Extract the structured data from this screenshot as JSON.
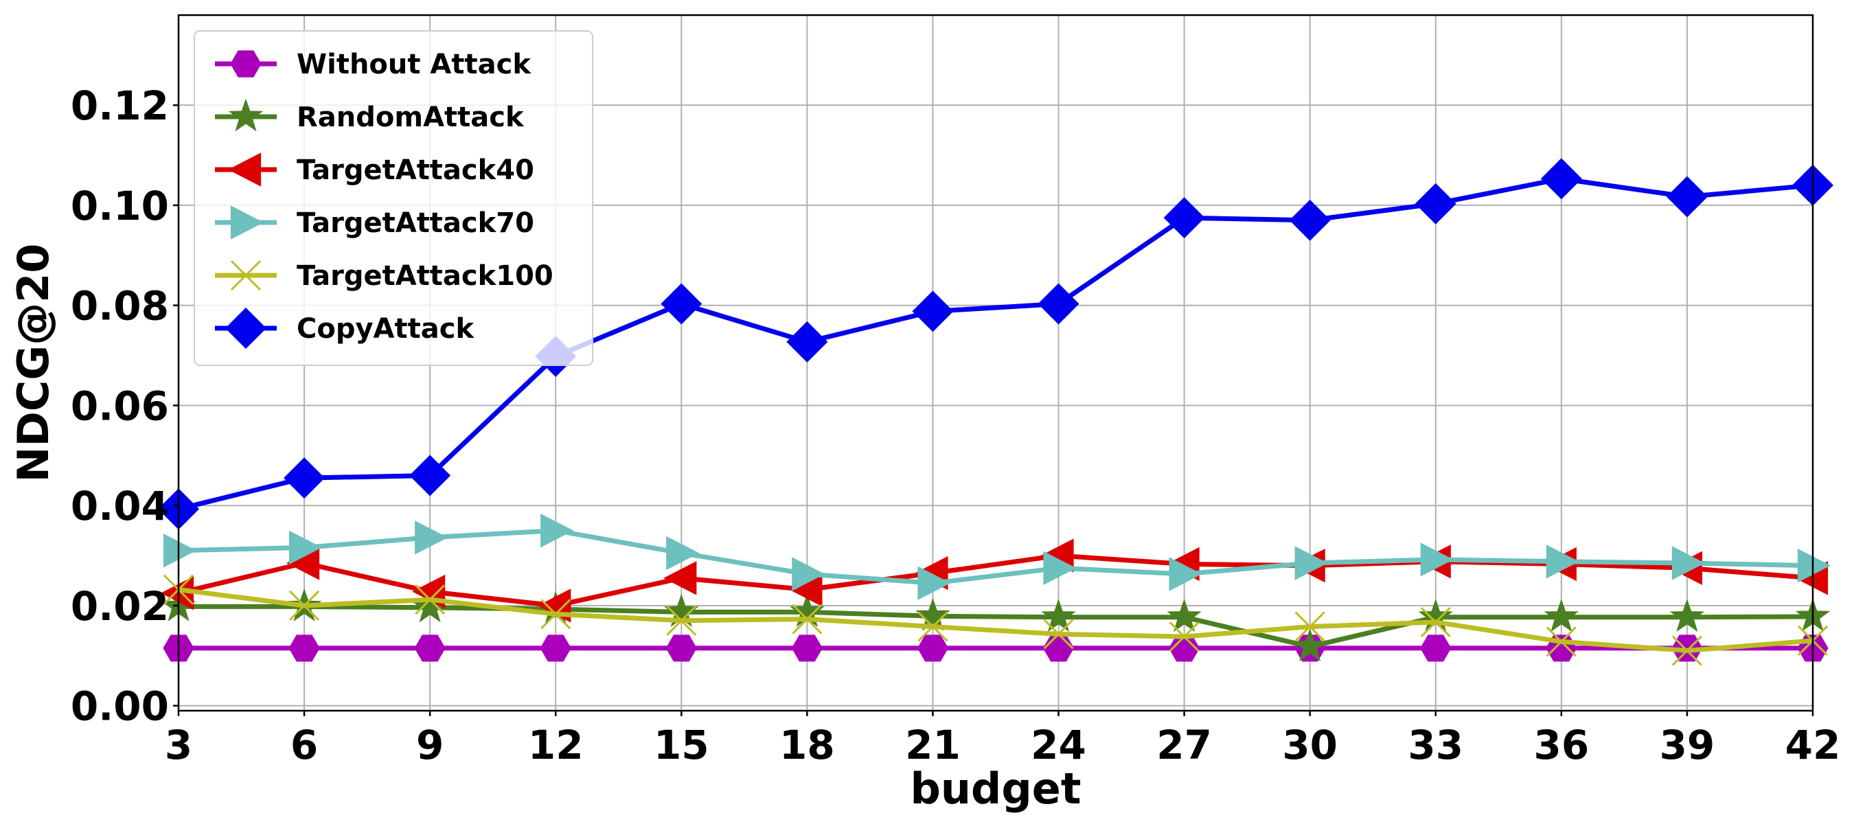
{
  "chart_data": {
    "type": "line",
    "title": "",
    "xlabel": "budget",
    "ylabel": "NDCG@20",
    "x": [
      3,
      6,
      9,
      12,
      15,
      18,
      21,
      24,
      27,
      30,
      33,
      36,
      39,
      42
    ],
    "xlim": [
      3,
      42
    ],
    "ylim": [
      -0.001,
      0.138
    ],
    "x_ticks": [
      "3",
      "6",
      "9",
      "12",
      "15",
      "18",
      "21",
      "24",
      "27",
      "30",
      "33",
      "36",
      "39",
      "42"
    ],
    "y_ticks": [
      "0.00",
      "0.02",
      "0.04",
      "0.06",
      "0.08",
      "0.10",
      "0.12"
    ],
    "y_tick_values": [
      0.0,
      0.02,
      0.04,
      0.06,
      0.08,
      0.1,
      0.12
    ],
    "grid": true,
    "legend_position": "top-left",
    "series": [
      {
        "name": "Without Attack",
        "color": "#aa00bb",
        "marker": "hexagon",
        "values": [
          0.0115,
          0.0115,
          0.0115,
          0.0115,
          0.0115,
          0.0115,
          0.0115,
          0.0115,
          0.0115,
          0.0115,
          0.0115,
          0.0115,
          0.0115,
          0.0115
        ]
      },
      {
        "name": "RandomAttack",
        "color": "#4a7f22",
        "marker": "star",
        "values": [
          0.0198,
          0.0198,
          0.0196,
          0.0193,
          0.0187,
          0.0187,
          0.0179,
          0.0177,
          0.0177,
          0.0118,
          0.0177,
          0.0177,
          0.0177,
          0.0178
        ]
      },
      {
        "name": "TargetAttack40",
        "color": "#dd0000",
        "marker": "triangle-left",
        "values": [
          0.0225,
          0.0285,
          0.0228,
          0.02,
          0.0255,
          0.0232,
          0.0265,
          0.03,
          0.0283,
          0.028,
          0.0288,
          0.0283,
          0.0275,
          0.0255
        ]
      },
      {
        "name": "TargetAttack70",
        "color": "#6cc0bd",
        "marker": "triangle-right",
        "values": [
          0.031,
          0.0316,
          0.0336,
          0.035,
          0.0305,
          0.0263,
          0.0245,
          0.0275,
          0.0263,
          0.0285,
          0.0292,
          0.0288,
          0.0285,
          0.028
        ]
      },
      {
        "name": "TargetAttack100",
        "color": "#bcbd22",
        "marker": "x",
        "values": [
          0.0232,
          0.02,
          0.0212,
          0.0183,
          0.017,
          0.0173,
          0.0158,
          0.0143,
          0.0138,
          0.0158,
          0.0167,
          0.0128,
          0.011,
          0.013
        ]
      },
      {
        "name": "CopyAttack",
        "color": "#0000ee",
        "marker": "diamond",
        "values": [
          0.0393,
          0.0455,
          0.046,
          0.0698,
          0.0803,
          0.0727,
          0.0788,
          0.0803,
          0.0975,
          0.097,
          0.1003,
          0.1053,
          0.1017,
          0.104
        ]
      }
    ]
  }
}
